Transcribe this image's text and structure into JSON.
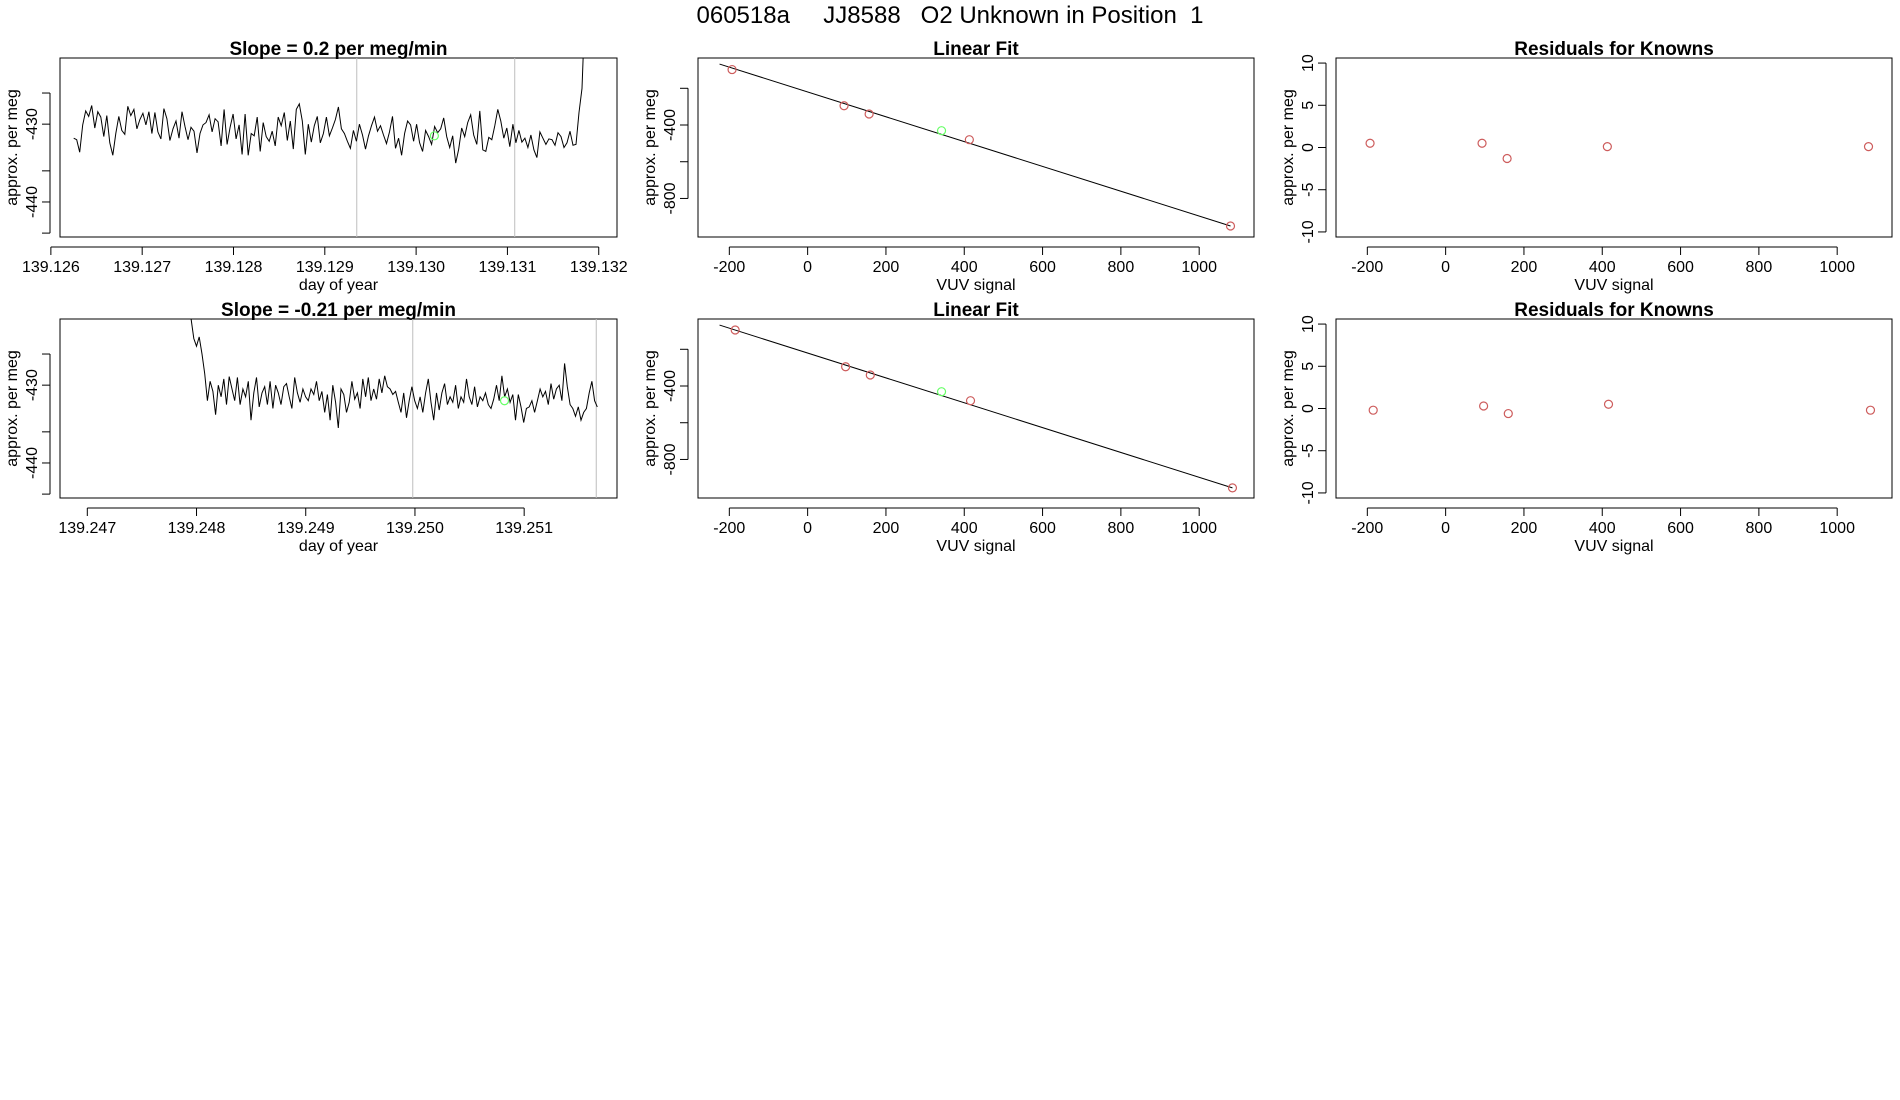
{
  "header": {
    "title": "060518a     JJ8588   O2 Unknown in Position  1"
  },
  "colors": {
    "line": "#000000",
    "marker": "#cd5c5c",
    "highlight": "#66ff66",
    "guide": "#bebebe"
  },
  "chart_data": [
    {
      "id": "ts1",
      "type": "line",
      "title": "Slope =  0.2  per meg/min",
      "xlabel": "day of year",
      "ylabel": "approx. per meg",
      "xlim": [
        139.1261,
        139.1322
      ],
      "ylim": [
        -444.5,
        -421.5
      ],
      "xticks": [
        139.126,
        139.127,
        139.128,
        139.129,
        139.13,
        139.131,
        139.132
      ],
      "xtick_labels": [
        "139.126",
        "139.127",
        "139.128",
        "139.129",
        "139.130",
        "139.131",
        "139.132"
      ],
      "yticks": [
        -440,
        -430
      ],
      "ytick_labels": [
        "-440",
        "-430"
      ],
      "extra_yticks": [
        -444,
        -436,
        -426
      ],
      "vlines": [
        139.12935,
        139.13108
      ],
      "x_start": 139.12625,
      "x_end": 139.13185,
      "y": [
        -431.8,
        -432.0,
        -433.6,
        -430.1,
        -428.3,
        -429.0,
        -427.6,
        -430.5,
        -428.4,
        -429.1,
        -431.6,
        -428.9,
        -432.4,
        -434.0,
        -431.2,
        -429.0,
        -430.8,
        -431.3,
        -427.7,
        -428.9,
        -428.1,
        -430.6,
        -429.4,
        -428.6,
        -430.1,
        -428.4,
        -431.2,
        -428.5,
        -431.0,
        -431.9,
        -428.0,
        -429.3,
        -432.1,
        -430.6,
        -429.6,
        -431.8,
        -428.4,
        -430.3,
        -432.0,
        -430.4,
        -430.9,
        -433.7,
        -431.2,
        -430.1,
        -429.8,
        -428.8,
        -431.0,
        -429.3,
        -429.7,
        -432.8,
        -428.1,
        -432.6,
        -430.4,
        -428.7,
        -431.9,
        -430.1,
        -433.9,
        -428.7,
        -434.0,
        -431.2,
        -431.5,
        -429.1,
        -433.5,
        -429.8,
        -431.6,
        -432.2,
        -430.9,
        -432.8,
        -429.1,
        -430.2,
        -428.5,
        -432.1,
        -429.6,
        -433.2,
        -428.1,
        -427.4,
        -429.6,
        -433.9,
        -430.0,
        -432.3,
        -430.2,
        -429.0,
        -432.4,
        -431.2,
        -429.1,
        -431.5,
        -430.5,
        -429.4,
        -427.8,
        -430.6,
        -431.2,
        -432.2,
        -433.1,
        -430.8,
        -432.2,
        -430.0,
        -431.4,
        -433.2,
        -431.5,
        -430.2,
        -429.1,
        -430.9,
        -430.2,
        -431.4,
        -432.5,
        -431.0,
        -429.0,
        -433.1,
        -431.8,
        -434.0,
        -431.2,
        -429.6,
        -430.1,
        -432.2,
        -430.0,
        -432.4,
        -433.5,
        -430.8,
        -431.6,
        -432.6,
        -430.3,
        -431.1,
        -430.6,
        -429.2,
        -431.6,
        -433.0,
        -431.5,
        -435.0,
        -433.2,
        -430.5,
        -431.6,
        -429.8,
        -428.8,
        -431.4,
        -432.6,
        -428.3,
        -433.3,
        -433.5,
        -431.7,
        -432.0,
        -430.2,
        -428.1,
        -429.6,
        -431.8,
        -430.5,
        -432.9,
        -430.0,
        -432.4,
        -430.8,
        -432.3,
        -431.8,
        -433.0,
        -431.4,
        -433.3,
        -434.3,
        -431.0,
        -431.8,
        -432.6,
        -431.9,
        -432.0,
        -432.7,
        -431.1,
        -431.6,
        -433.0,
        -432.4,
        -430.9,
        -432.7,
        -432.6,
        -428.5,
        -425.4,
        -415.0
      ],
      "highlight_point": {
        "x": 139.1302,
        "y": -431.5
      }
    },
    {
      "id": "fit1",
      "type": "scatter",
      "title": "Linear Fit",
      "xlabel": "VUV signal",
      "ylabel": "approx. per meg",
      "xlim": [
        -280,
        1140
      ],
      "ylim": [
        -1010,
        -35
      ],
      "xticks": [
        -200,
        0,
        200,
        400,
        600,
        800,
        1000
      ],
      "xtick_labels": [
        "-200",
        "0",
        "200",
        "400",
        "600",
        "800",
        "1000"
      ],
      "yticks": [
        -800,
        -400
      ],
      "ytick_labels": [
        "-800",
        "-400"
      ],
      "extra_yticks": [
        -200,
        -600
      ],
      "fit_line": {
        "x": [
          -225,
          1080
        ],
        "y": [
          -68,
          -950
        ]
      },
      "points": {
        "x": [
          -193,
          93,
          157,
          413,
          1080
        ],
        "y": [
          -98,
          -295,
          -340,
          -480,
          -950
        ]
      },
      "highlight_point": {
        "x": 342,
        "y": -431
      }
    },
    {
      "id": "res1",
      "type": "scatter",
      "title": "Residuals for Knowns",
      "xlabel": "VUV signal",
      "ylabel": "approx. per meg",
      "xlim": [
        -280,
        1140
      ],
      "ylim": [
        -10.6,
        10.6
      ],
      "xticks": [
        -200,
        0,
        200,
        400,
        600,
        800,
        1000
      ],
      "xtick_labels": [
        "-200",
        "0",
        "200",
        "400",
        "600",
        "800",
        "1000"
      ],
      "yticks": [
        -10,
        -5,
        0,
        5,
        10
      ],
      "ytick_labels": [
        "-10",
        "-5",
        "0",
        "5",
        "10"
      ],
      "points": {
        "x": [
          -193,
          93,
          157,
          413,
          1080
        ],
        "y": [
          0.5,
          0.5,
          -1.3,
          0.1,
          0.1
        ]
      }
    },
    {
      "id": "ts2",
      "type": "line",
      "title": "Slope =  -0.21  per meg/min",
      "xlabel": "day of year",
      "ylabel": "approx. per meg",
      "xlim": [
        139.24675,
        139.25185
      ],
      "ylim": [
        -444.5,
        -421.5
      ],
      "xticks": [
        139.247,
        139.248,
        139.249,
        139.25,
        139.251
      ],
      "xtick_labels": [
        "139.247",
        "139.248",
        "139.249",
        "139.250",
        "139.251"
      ],
      "yticks": [
        -440,
        -430
      ],
      "ytick_labels": [
        "-440",
        "-430"
      ],
      "extra_yticks": [
        -444,
        -436,
        -426
      ],
      "vlines": [
        139.24998,
        139.25166
      ],
      "x_start": 139.24795,
      "x_end": 139.25167,
      "y": [
        -421.5,
        -424.0,
        -425.0,
        -423.8,
        -426.0,
        -428.5,
        -432.0,
        -429.5,
        -430.8,
        -433.8,
        -430.0,
        -431.5,
        -429.2,
        -432.5,
        -428.9,
        -430.5,
        -432.0,
        -429.0,
        -432.5,
        -430.5,
        -431.5,
        -429.5,
        -434.5,
        -431.0,
        -429.0,
        -432.8,
        -431.0,
        -430.2,
        -432.5,
        -429.5,
        -433.0,
        -430.0,
        -431.0,
        -432.5,
        -430.2,
        -429.8,
        -431.5,
        -433.0,
        -429.0,
        -431.0,
        -432.2,
        -430.5,
        -431.5,
        -432.0,
        -430.5,
        -431.2,
        -429.5,
        -432.0,
        -430.8,
        -433.5,
        -431.2,
        -434.5,
        -430.0,
        -432.2,
        -435.5,
        -430.5,
        -431.2,
        -433.5,
        -432.2,
        -429.5,
        -431.8,
        -431.0,
        -433.0,
        -429.2,
        -431.5,
        -429.0,
        -432.0,
        -430.5,
        -431.8,
        -429.2,
        -431.0,
        -428.8,
        -430.2,
        -430.5,
        -431.2,
        -430.8,
        -432.2,
        -433.5,
        -431.0,
        -434.2,
        -432.0,
        -430.2,
        -432.0,
        -433.0,
        -431.5,
        -433.5,
        -431.0,
        -429.2,
        -432.2,
        -434.5,
        -431.0,
        -433.2,
        -431.0,
        -429.8,
        -432.5,
        -431.5,
        -432.2,
        -430.0,
        -433.0,
        -431.5,
        -432.2,
        -429.2,
        -431.5,
        -432.5,
        -430.2,
        -432.8,
        -431.5,
        -432.0,
        -431.0,
        -432.5,
        -433.0,
        -431.8,
        -430.0,
        -432.0,
        -428.8,
        -431.5,
        -430.5,
        -432.2,
        -431.2,
        -434.5,
        -431.2,
        -432.8,
        -434.8,
        -433.0,
        -432.8,
        -432.0,
        -433.5,
        -432.0,
        -430.5,
        -431.5,
        -430.8,
        -432.5,
        -429.8,
        -431.8,
        -430.5,
        -430.0,
        -432.0,
        -427.2,
        -430.2,
        -432.5,
        -433.0,
        -434.0,
        -432.8,
        -434.5,
        -433.5,
        -433.0,
        -431.0,
        -429.5,
        -432.0,
        -432.8
      ],
      "highlight_point": {
        "x": 139.25082,
        "y": -432.0
      }
    },
    {
      "id": "fit2",
      "type": "scatter",
      "title": "Linear Fit",
      "xlabel": "VUV signal",
      "ylabel": "approx. per meg",
      "xlim": [
        -280,
        1140
      ],
      "ylim": [
        -1010,
        -35
      ],
      "xticks": [
        -200,
        0,
        200,
        400,
        600,
        800,
        1000
      ],
      "xtick_labels": [
        "-200",
        "0",
        "200",
        "400",
        "600",
        "800",
        "1000"
      ],
      "yticks": [
        -800,
        -400
      ],
      "ytick_labels": [
        "-800",
        "-400"
      ],
      "extra_yticks": [
        -200,
        -600
      ],
      "fit_line": {
        "x": [
          -225,
          1085
        ],
        "y": [
          -68,
          -955
        ]
      },
      "points": {
        "x": [
          -185,
          97,
          160,
          416,
          1085
        ],
        "y": [
          -95,
          -295,
          -340,
          -480,
          -955
        ]
      },
      "highlight_point": {
        "x": 342,
        "y": -431
      }
    },
    {
      "id": "res2",
      "type": "scatter",
      "title": "Residuals for Knowns",
      "xlabel": "VUV signal",
      "ylabel": "approx. per meg",
      "xlim": [
        -280,
        1140
      ],
      "ylim": [
        -10.6,
        10.6
      ],
      "xticks": [
        -200,
        0,
        200,
        400,
        600,
        800,
        1000
      ],
      "xtick_labels": [
        "-200",
        "0",
        "200",
        "400",
        "600",
        "800",
        "1000"
      ],
      "yticks": [
        -10,
        -5,
        0,
        5,
        10
      ],
      "ytick_labels": [
        "-10",
        "-5",
        "0",
        "5",
        "10"
      ],
      "points": {
        "x": [
          -185,
          97,
          160,
          416,
          1085
        ],
        "y": [
          -0.2,
          0.3,
          -0.6,
          0.5,
          -0.2
        ]
      }
    }
  ]
}
